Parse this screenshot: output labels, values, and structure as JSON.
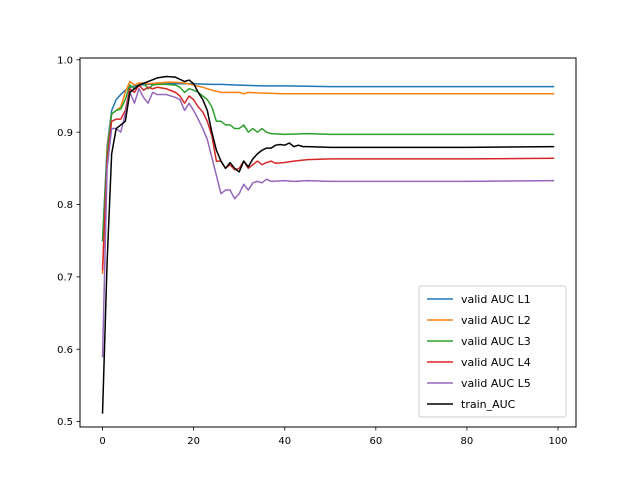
{
  "chart_data": {
    "type": "line",
    "xlim": [
      -4.95,
      103.95
    ],
    "ylim": [
      0.4925,
      1.0025
    ],
    "xticks": [
      0,
      20,
      40,
      60,
      80,
      100
    ],
    "yticks": [
      0.5,
      0.6,
      0.7,
      0.8,
      0.9,
      1.0
    ],
    "xtick_labels": [
      "0",
      "20",
      "40",
      "60",
      "80",
      "100"
    ],
    "ytick_labels": [
      "0.5",
      "0.6",
      "0.7",
      "0.8",
      "0.9",
      "1.0"
    ],
    "grid": false,
    "legend_position": "lower-right",
    "series": [
      {
        "name": "valid AUC L1",
        "color": "#1f77b4",
        "keypoints": [
          [
            0,
            0.75
          ],
          [
            1,
            0.88
          ],
          [
            2,
            0.93
          ],
          [
            3,
            0.945
          ],
          [
            4,
            0.952
          ],
          [
            5,
            0.958
          ],
          [
            6,
            0.962
          ],
          [
            8,
            0.965
          ],
          [
            10,
            0.966
          ],
          [
            15,
            0.967
          ],
          [
            20,
            0.967
          ],
          [
            24,
            0.966
          ],
          [
            26,
            0.966
          ],
          [
            30,
            0.965
          ],
          [
            35,
            0.964
          ],
          [
            40,
            0.964
          ],
          [
            50,
            0.963
          ],
          [
            60,
            0.963
          ],
          [
            80,
            0.963
          ],
          [
            99,
            0.963
          ]
        ]
      },
      {
        "name": "valid AUC L2",
        "color": "#ff7f0e",
        "keypoints": [
          [
            0,
            0.705
          ],
          [
            1,
            0.875
          ],
          [
            2,
            0.925
          ],
          [
            3,
            0.93
          ],
          [
            4,
            0.935
          ],
          [
            5,
            0.955
          ],
          [
            6,
            0.97
          ],
          [
            7,
            0.965
          ],
          [
            8,
            0.968
          ],
          [
            10,
            0.967
          ],
          [
            12,
            0.968
          ],
          [
            14,
            0.969
          ],
          [
            16,
            0.969
          ],
          [
            18,
            0.968
          ],
          [
            20,
            0.965
          ],
          [
            22,
            0.962
          ],
          [
            24,
            0.958
          ],
          [
            26,
            0.955
          ],
          [
            28,
            0.955
          ],
          [
            30,
            0.955
          ],
          [
            31,
            0.953
          ],
          [
            32,
            0.955
          ],
          [
            35,
            0.954
          ],
          [
            40,
            0.953
          ],
          [
            50,
            0.953
          ],
          [
            60,
            0.953
          ],
          [
            80,
            0.953
          ],
          [
            99,
            0.953
          ]
        ]
      },
      {
        "name": "valid AUC L3",
        "color": "#2ca02c",
        "keypoints": [
          [
            0,
            0.75
          ],
          [
            1,
            0.87
          ],
          [
            2,
            0.925
          ],
          [
            3,
            0.93
          ],
          [
            4,
            0.932
          ],
          [
            5,
            0.945
          ],
          [
            6,
            0.965
          ],
          [
            7,
            0.96
          ],
          [
            8,
            0.965
          ],
          [
            9,
            0.968
          ],
          [
            10,
            0.96
          ],
          [
            11,
            0.965
          ],
          [
            12,
            0.966
          ],
          [
            14,
            0.966
          ],
          [
            16,
            0.965
          ],
          [
            17,
            0.962
          ],
          [
            18,
            0.955
          ],
          [
            19,
            0.96
          ],
          [
            20,
            0.958
          ],
          [
            21,
            0.955
          ],
          [
            22,
            0.95
          ],
          [
            23,
            0.945
          ],
          [
            24,
            0.935
          ],
          [
            25,
            0.915
          ],
          [
            26,
            0.915
          ],
          [
            27,
            0.91
          ],
          [
            28,
            0.91
          ],
          [
            29,
            0.905
          ],
          [
            30,
            0.905
          ],
          [
            31,
            0.91
          ],
          [
            32,
            0.9
          ],
          [
            33,
            0.905
          ],
          [
            34,
            0.9
          ],
          [
            35,
            0.905
          ],
          [
            36,
            0.9
          ],
          [
            37,
            0.898
          ],
          [
            40,
            0.897
          ],
          [
            45,
            0.898
          ],
          [
            50,
            0.897
          ],
          [
            60,
            0.897
          ],
          [
            80,
            0.897
          ],
          [
            99,
            0.897
          ]
        ]
      },
      {
        "name": "valid AUC L4",
        "color": "#d62728",
        "keypoints": [
          [
            0,
            0.71
          ],
          [
            1,
            0.86
          ],
          [
            2,
            0.915
          ],
          [
            3,
            0.918
          ],
          [
            4,
            0.918
          ],
          [
            5,
            0.93
          ],
          [
            6,
            0.96
          ],
          [
            7,
            0.955
          ],
          [
            8,
            0.965
          ],
          [
            9,
            0.958
          ],
          [
            10,
            0.962
          ],
          [
            11,
            0.96
          ],
          [
            12,
            0.962
          ],
          [
            14,
            0.96
          ],
          [
            16,
            0.955
          ],
          [
            17,
            0.95
          ],
          [
            18,
            0.94
          ],
          [
            19,
            0.95
          ],
          [
            20,
            0.945
          ],
          [
            21,
            0.935
          ],
          [
            22,
            0.928
          ],
          [
            23,
            0.915
          ],
          [
            24,
            0.895
          ],
          [
            25,
            0.86
          ],
          [
            26,
            0.86
          ],
          [
            27,
            0.85
          ],
          [
            28,
            0.855
          ],
          [
            29,
            0.848
          ],
          [
            30,
            0.85
          ],
          [
            31,
            0.86
          ],
          [
            32,
            0.85
          ],
          [
            33,
            0.855
          ],
          [
            34,
            0.86
          ],
          [
            35,
            0.855
          ],
          [
            36,
            0.858
          ],
          [
            37,
            0.86
          ],
          [
            38,
            0.857
          ],
          [
            40,
            0.858
          ],
          [
            42,
            0.86
          ],
          [
            45,
            0.862
          ],
          [
            50,
            0.863
          ],
          [
            60,
            0.863
          ],
          [
            80,
            0.863
          ],
          [
            99,
            0.864
          ]
        ]
      },
      {
        "name": "valid AUC L5",
        "color": "#9467bd",
        "keypoints": [
          [
            0,
            0.59
          ],
          [
            1,
            0.85
          ],
          [
            2,
            0.905
          ],
          [
            3,
            0.905
          ],
          [
            4,
            0.9
          ],
          [
            5,
            0.925
          ],
          [
            6,
            0.955
          ],
          [
            7,
            0.94
          ],
          [
            8,
            0.96
          ],
          [
            9,
            0.948
          ],
          [
            10,
            0.94
          ],
          [
            11,
            0.955
          ],
          [
            12,
            0.952
          ],
          [
            14,
            0.952
          ],
          [
            16,
            0.948
          ],
          [
            17,
            0.945
          ],
          [
            18,
            0.93
          ],
          [
            19,
            0.94
          ],
          [
            20,
            0.93
          ],
          [
            21,
            0.918
          ],
          [
            22,
            0.905
          ],
          [
            23,
            0.89
          ],
          [
            24,
            0.865
          ],
          [
            25,
            0.84
          ],
          [
            26,
            0.815
          ],
          [
            27,
            0.82
          ],
          [
            28,
            0.82
          ],
          [
            29,
            0.808
          ],
          [
            30,
            0.815
          ],
          [
            31,
            0.828
          ],
          [
            32,
            0.82
          ],
          [
            33,
            0.83
          ],
          [
            34,
            0.832
          ],
          [
            35,
            0.83
          ],
          [
            36,
            0.835
          ],
          [
            37,
            0.832
          ],
          [
            40,
            0.833
          ],
          [
            42,
            0.832
          ],
          [
            45,
            0.833
          ],
          [
            50,
            0.832
          ],
          [
            60,
            0.832
          ],
          [
            80,
            0.832
          ],
          [
            99,
            0.833
          ]
        ]
      },
      {
        "name": "train_AUC",
        "color": "#000000",
        "keypoints": [
          [
            0,
            0.512
          ],
          [
            1,
            0.72
          ],
          [
            2,
            0.87
          ],
          [
            3,
            0.905
          ],
          [
            4,
            0.91
          ],
          [
            5,
            0.915
          ],
          [
            6,
            0.955
          ],
          [
            7,
            0.96
          ],
          [
            8,
            0.965
          ],
          [
            10,
            0.97
          ],
          [
            12,
            0.975
          ],
          [
            14,
            0.977
          ],
          [
            16,
            0.976
          ],
          [
            18,
            0.97
          ],
          [
            19,
            0.972
          ],
          [
            20,
            0.967
          ],
          [
            21,
            0.955
          ],
          [
            22,
            0.945
          ],
          [
            23,
            0.93
          ],
          [
            24,
            0.9
          ],
          [
            25,
            0.875
          ],
          [
            26,
            0.86
          ],
          [
            27,
            0.85
          ],
          [
            28,
            0.858
          ],
          [
            29,
            0.85
          ],
          [
            30,
            0.845
          ],
          [
            31,
            0.86
          ],
          [
            32,
            0.852
          ],
          [
            33,
            0.863
          ],
          [
            34,
            0.87
          ],
          [
            35,
            0.875
          ],
          [
            36,
            0.878
          ],
          [
            37,
            0.878
          ],
          [
            38,
            0.882
          ],
          [
            39,
            0.883
          ],
          [
            40,
            0.882
          ],
          [
            41,
            0.885
          ],
          [
            42,
            0.88
          ],
          [
            43,
            0.882
          ],
          [
            44,
            0.88
          ],
          [
            45,
            0.88
          ],
          [
            50,
            0.879
          ],
          [
            60,
            0.879
          ],
          [
            80,
            0.879
          ],
          [
            99,
            0.88
          ]
        ]
      }
    ]
  }
}
